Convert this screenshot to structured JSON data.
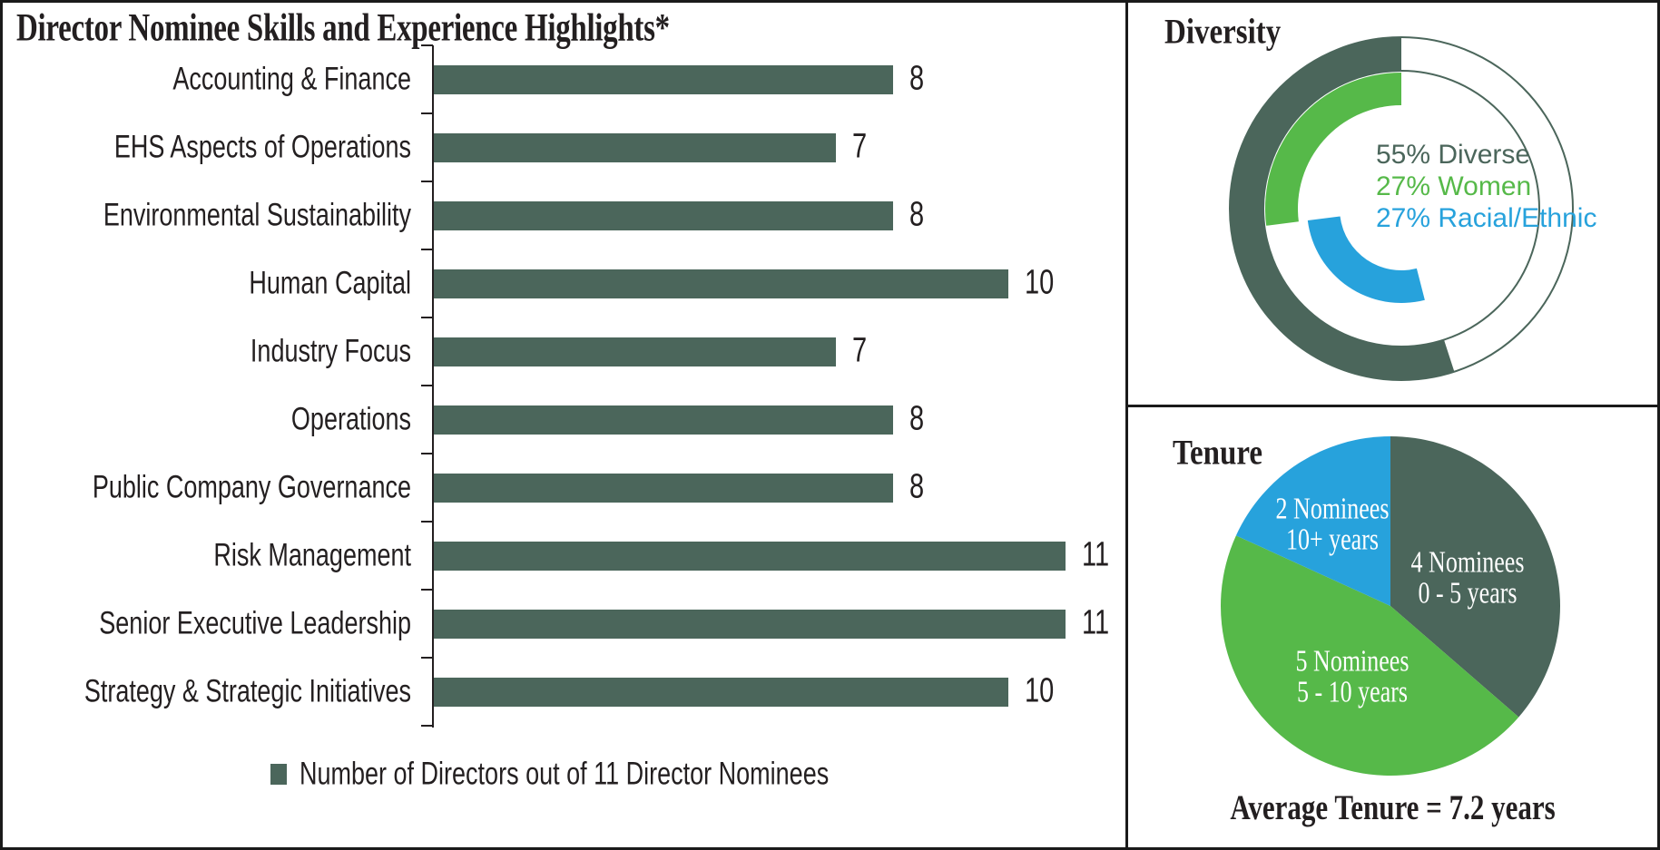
{
  "colors": {
    "dark_green": "#4b665b",
    "green": "#56b949",
    "blue": "#27a2dc",
    "text": "#231f20",
    "line": "#1a1a1a"
  },
  "chart_data": [
    {
      "id": "skills",
      "type": "bar",
      "orientation": "horizontal",
      "title": "Director Nominee Skills and Experience Highlights*",
      "categories": [
        "Accounting & Finance",
        "EHS Aspects of Operations",
        "Environmental Sustainability",
        "Human Capital",
        "Industry Focus",
        "Operations",
        "Public Company Governance",
        "Risk Management",
        "Senior Executive Leadership",
        "Strategy & Strategic Initiatives"
      ],
      "values": [
        8,
        7,
        8,
        10,
        7,
        8,
        8,
        11,
        11,
        10
      ],
      "xlim": [
        0,
        11
      ],
      "bar_color": "#4b665b",
      "value_labels": true,
      "grid": false,
      "legend": [
        "Number of Directors out of 11 Director Nominees"
      ],
      "legend_position": "bottom"
    },
    {
      "id": "diversity",
      "type": "donut",
      "title": "Diversity",
      "start": "top",
      "direction": "counterclockwise",
      "segments": [
        {
          "label": "55% Diverse",
          "percent": 55,
          "color": "#4b665b",
          "ring": "outer",
          "start_percent": 0
        },
        {
          "label": "27% Women",
          "percent": 27,
          "color": "#56b949",
          "ring": "middle",
          "start_percent": 0
        },
        {
          "label": "27% Racial/Ethnic",
          "percent": 27,
          "color": "#27a2dc",
          "ring": "inner",
          "start_percent": 27
        }
      ]
    },
    {
      "id": "tenure",
      "type": "pie",
      "title": "Tenure",
      "start": "top",
      "direction": "clockwise",
      "total": 11,
      "slices": [
        {
          "line1": "4 Nominees",
          "line2": "0 - 5 years",
          "value": 4,
          "color": "#4b665b"
        },
        {
          "line1": "5 Nominees",
          "line2": "5 - 10 years",
          "value": 5,
          "color": "#56b949"
        },
        {
          "line1": "2 Nominees",
          "line2": "10+ years",
          "value": 2,
          "color": "#27a2dc"
        }
      ],
      "footer": "Average Tenure = 7.2 years"
    }
  ]
}
